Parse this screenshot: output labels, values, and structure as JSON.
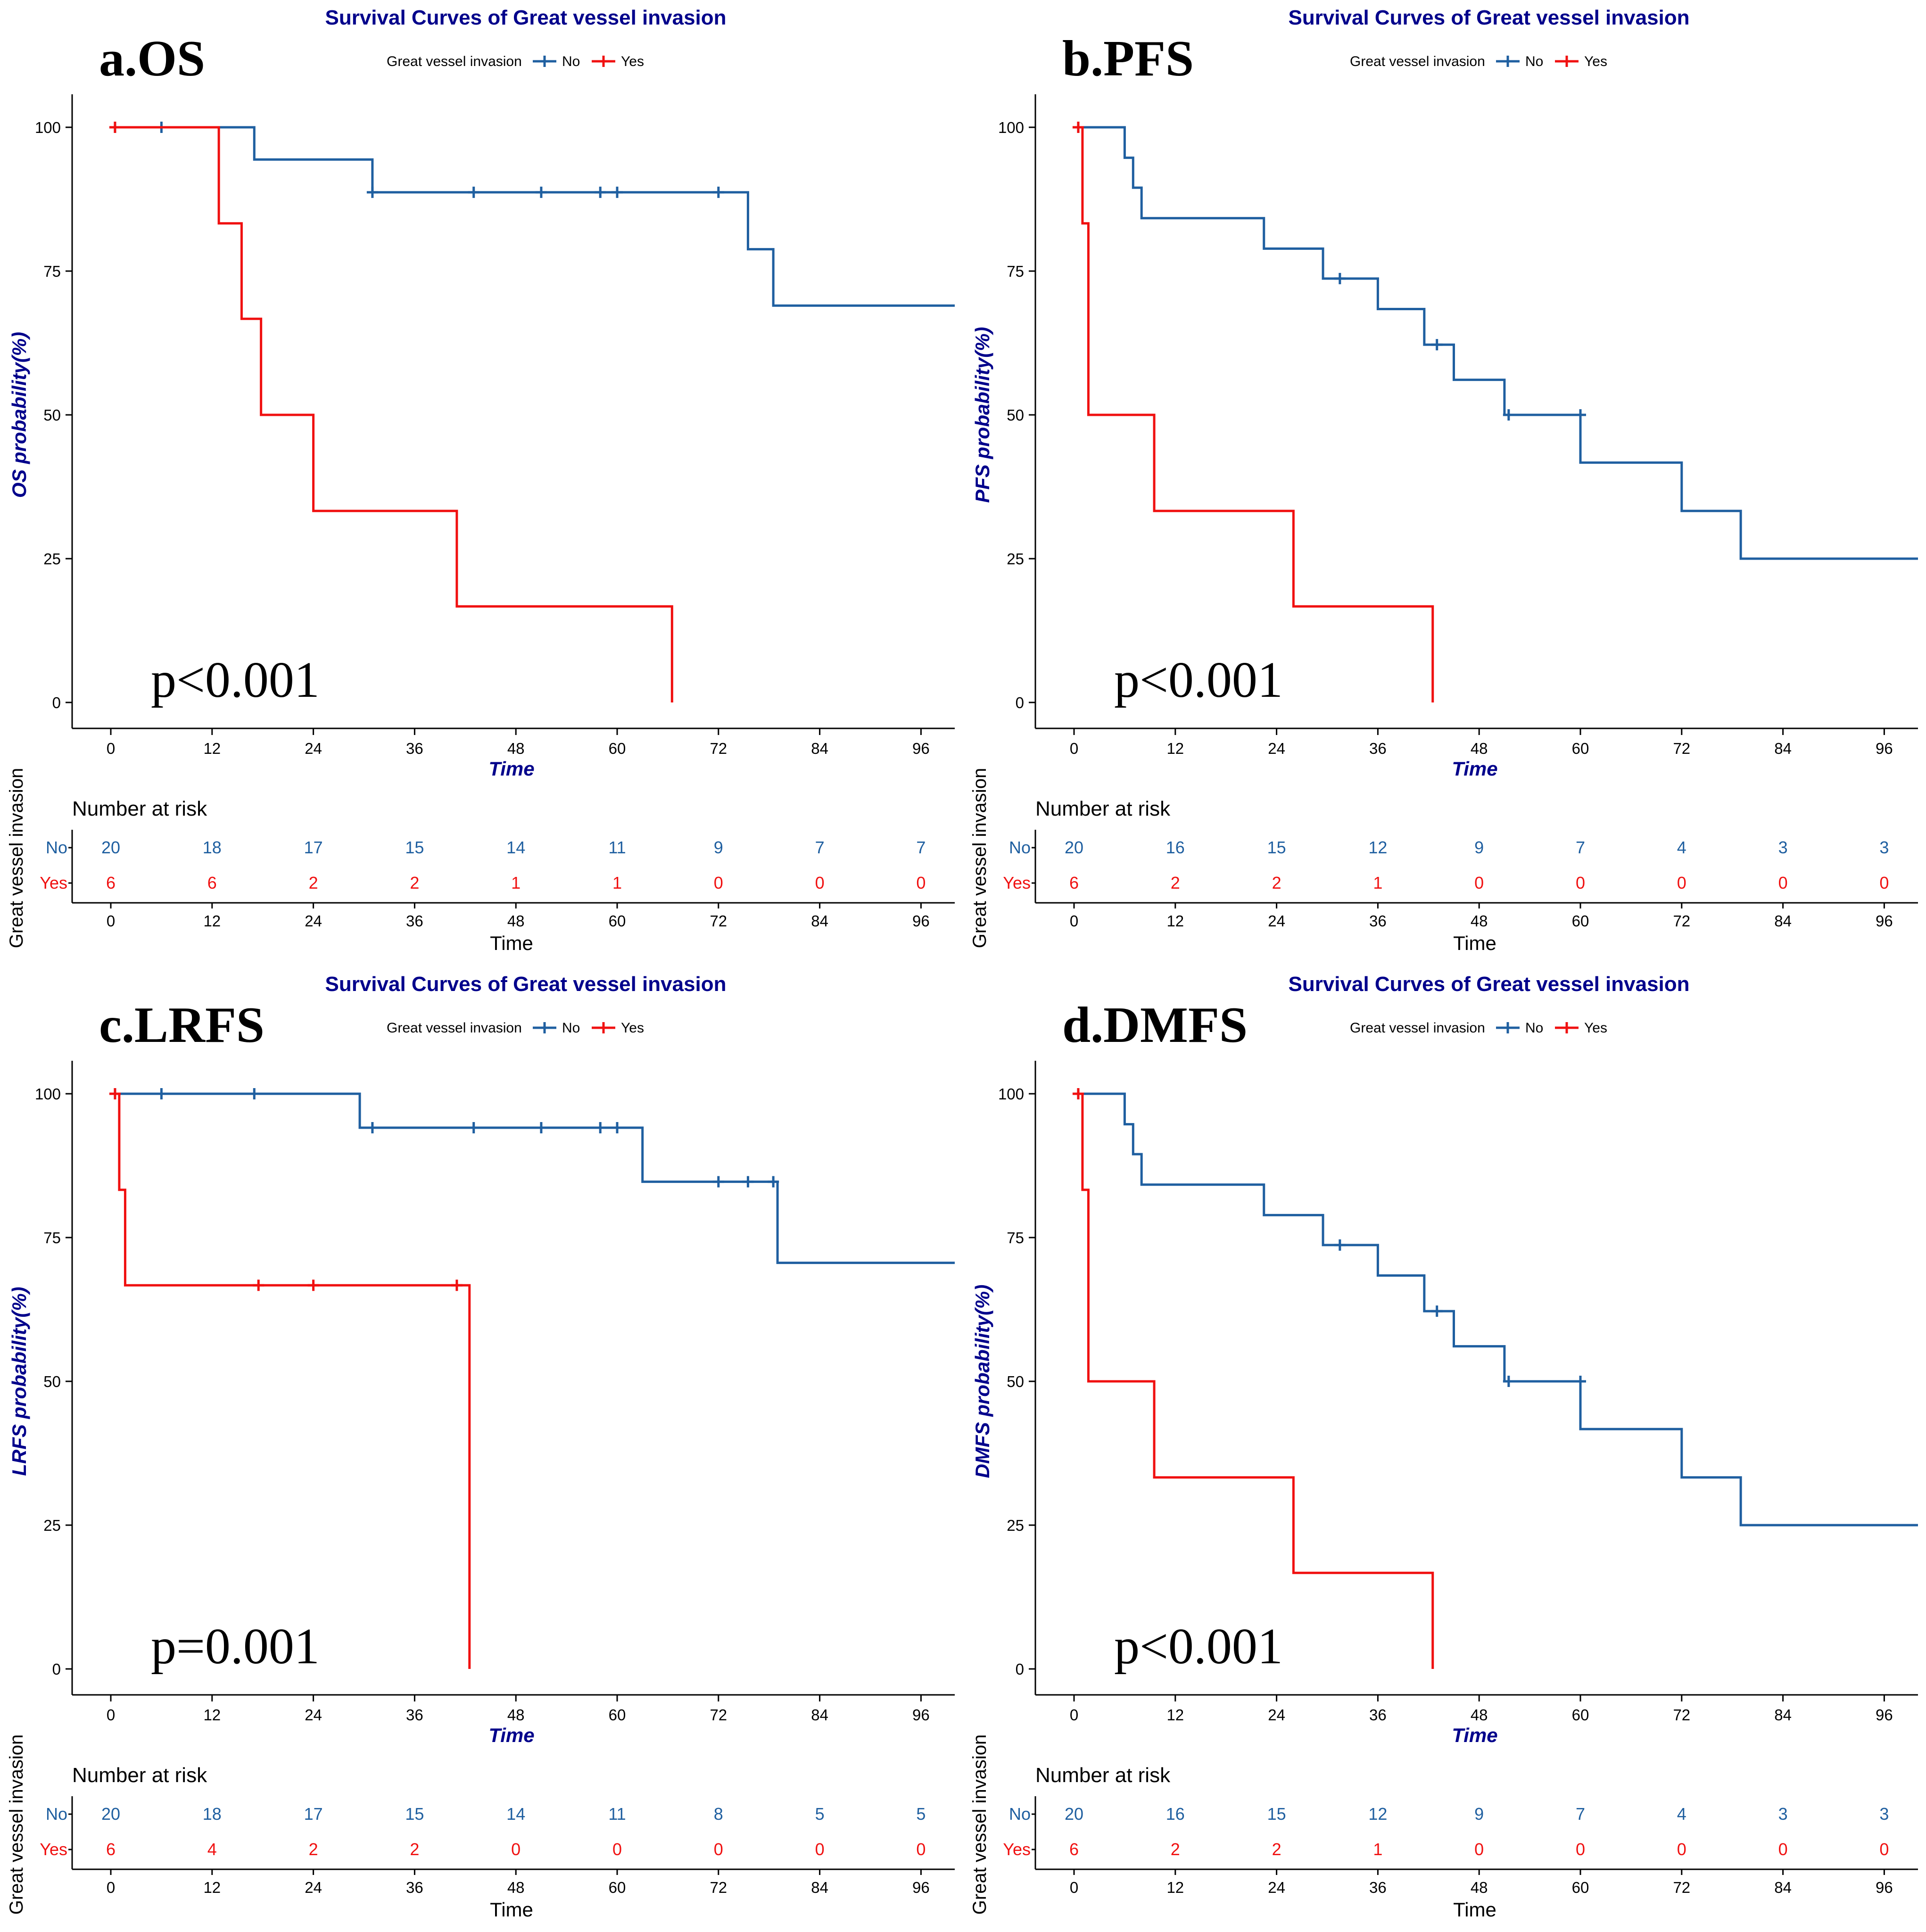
{
  "legend": {
    "title": "Great vessel invasion",
    "groups": [
      "No",
      "Yes"
    ]
  },
  "colors": {
    "No": "#1F5FA0",
    "Yes": "#F01010",
    "title": "#00008B"
  },
  "risk_table": {
    "title": "Number at risk",
    "xlabel": "Time",
    "ylabel": "Great vessel invasion",
    "rows": [
      "No",
      "Yes"
    ]
  },
  "chart_data": [
    {
      "type": "line",
      "panel_label": "a.OS",
      "title": "Survival Curves of Great vessel invasion",
      "xlabel": "Time",
      "ylabel": "OS probability(%)",
      "p_value": "p<0.001",
      "xlim": [
        0,
        100
      ],
      "ylim": [
        0,
        100
      ],
      "xticks": [
        0,
        12,
        24,
        36,
        48,
        60,
        72,
        84,
        96
      ],
      "yticks": [
        0,
        25,
        50,
        75,
        100
      ],
      "series": [
        {
          "name": "No",
          "color": "#1F5FA0",
          "steps": [
            [
              0,
              100
            ],
            [
              17,
              94.4
            ],
            [
              31,
              88.7
            ],
            [
              75.5,
              78.8
            ],
            [
              78.5,
              69
            ],
            [
              101,
              69
            ]
          ],
          "censors": [
            [
              0.5,
              100
            ],
            [
              6,
              100
            ],
            [
              31,
              88.7
            ],
            [
              43,
              88.7
            ],
            [
              51,
              88.7
            ],
            [
              58,
              88.7
            ],
            [
              60,
              88.7
            ],
            [
              72,
              88.7
            ]
          ]
        },
        {
          "name": "Yes",
          "color": "#F01010",
          "steps": [
            [
              0,
              100
            ],
            [
              12.8,
              83.3
            ],
            [
              15.5,
              66.7
            ],
            [
              17.8,
              50
            ],
            [
              24,
              33.3
            ],
            [
              41,
              16.7
            ],
            [
              66.5,
              0
            ]
          ],
          "censors": [
            [
              0.5,
              100
            ]
          ]
        }
      ],
      "risk": {
        "times": [
          0,
          12,
          24,
          36,
          48,
          60,
          72,
          84,
          96
        ],
        "No": [
          20,
          18,
          17,
          15,
          14,
          11,
          9,
          7,
          7
        ],
        "Yes": [
          6,
          6,
          2,
          2,
          1,
          1,
          0,
          0,
          0
        ]
      }
    },
    {
      "type": "line",
      "panel_label": "b.PFS",
      "title": "Survival Curves of Great vessel invasion",
      "xlabel": "Time",
      "ylabel": "PFS probability(%)",
      "p_value": "p<0.001",
      "xlim": [
        0,
        100
      ],
      "ylim": [
        0,
        100
      ],
      "xticks": [
        0,
        12,
        24,
        36,
        48,
        60,
        72,
        84,
        96
      ],
      "yticks": [
        0,
        25,
        50,
        75,
        100
      ],
      "series": [
        {
          "name": "No",
          "color": "#1F5FA0",
          "steps": [
            [
              0,
              100
            ],
            [
              6,
              94.7
            ],
            [
              7,
              89.5
            ],
            [
              8,
              84.2
            ],
            [
              22.5,
              78.9
            ],
            [
              29.5,
              73.7
            ],
            [
              36,
              68.4
            ],
            [
              41.5,
              62.2
            ],
            [
              45,
              56.1
            ],
            [
              51,
              50
            ],
            [
              60,
              41.7
            ],
            [
              72,
              33.3
            ],
            [
              79,
              25
            ],
            [
              101,
              25
            ]
          ],
          "censors": [
            [
              0.5,
              100
            ],
            [
              31.5,
              73.7
            ],
            [
              43,
              62.2
            ],
            [
              51.5,
              50
            ],
            [
              60,
              50
            ]
          ]
        },
        {
          "name": "Yes",
          "color": "#F01010",
          "steps": [
            [
              0,
              100
            ],
            [
              1,
              83.3
            ],
            [
              1.7,
              50
            ],
            [
              9.5,
              33.3
            ],
            [
              26,
              16.7
            ],
            [
              42.5,
              0
            ]
          ],
          "censors": [
            [
              0.5,
              100
            ]
          ]
        }
      ],
      "risk": {
        "times": [
          0,
          12,
          24,
          36,
          48,
          60,
          72,
          84,
          96
        ],
        "No": [
          20,
          16,
          15,
          12,
          9,
          7,
          4,
          3,
          3
        ],
        "Yes": [
          6,
          2,
          2,
          1,
          0,
          0,
          0,
          0,
          0
        ]
      }
    },
    {
      "type": "line",
      "panel_label": "c.LRFS",
      "title": "Survival Curves of Great vessel invasion",
      "xlabel": "Time",
      "ylabel": "LRFS probability(%)",
      "p_value": "p=0.001",
      "xlim": [
        0,
        100
      ],
      "ylim": [
        0,
        100
      ],
      "xticks": [
        0,
        12,
        24,
        36,
        48,
        60,
        72,
        84,
        96
      ],
      "yticks": [
        0,
        25,
        50,
        75,
        100
      ],
      "series": [
        {
          "name": "No",
          "color": "#1F5FA0",
          "steps": [
            [
              0,
              100
            ],
            [
              29.5,
              94.1
            ],
            [
              63,
              84.7
            ],
            [
              79,
              70.6
            ],
            [
              101,
              70.6
            ]
          ],
          "censors": [
            [
              0.5,
              100
            ],
            [
              6,
              100
            ],
            [
              17,
              100
            ],
            [
              31,
              94.1
            ],
            [
              43,
              94.1
            ],
            [
              51,
              94.1
            ],
            [
              58,
              94.1
            ],
            [
              60,
              94.1
            ],
            [
              72,
              84.7
            ],
            [
              75.5,
              84.7
            ],
            [
              78.5,
              84.7
            ]
          ]
        },
        {
          "name": "Yes",
          "color": "#F01010",
          "steps": [
            [
              0,
              100
            ],
            [
              1,
              83.3
            ],
            [
              1.7,
              66.7
            ],
            [
              42.5,
              0
            ]
          ],
          "censors": [
            [
              0.5,
              100
            ],
            [
              17.5,
              66.7
            ],
            [
              24,
              66.7
            ],
            [
              41,
              66.7
            ]
          ]
        }
      ],
      "risk": {
        "times": [
          0,
          12,
          24,
          36,
          48,
          60,
          72,
          84,
          96
        ],
        "No": [
          20,
          18,
          17,
          15,
          14,
          11,
          8,
          5,
          5
        ],
        "Yes": [
          6,
          4,
          2,
          2,
          0,
          0,
          0,
          0,
          0
        ]
      }
    },
    {
      "type": "line",
      "panel_label": "d.DMFS",
      "title": "Survival Curves of Great vessel invasion",
      "xlabel": "Time",
      "ylabel": "DMFS probability(%)",
      "p_value": "p<0.001",
      "xlim": [
        0,
        100
      ],
      "ylim": [
        0,
        100
      ],
      "xticks": [
        0,
        12,
        24,
        36,
        48,
        60,
        72,
        84,
        96
      ],
      "yticks": [
        0,
        25,
        50,
        75,
        100
      ],
      "series": [
        {
          "name": "No",
          "color": "#1F5FA0",
          "steps": [
            [
              0,
              100
            ],
            [
              6,
              94.7
            ],
            [
              7,
              89.5
            ],
            [
              8,
              84.2
            ],
            [
              22.5,
              78.9
            ],
            [
              29.5,
              73.7
            ],
            [
              36,
              68.4
            ],
            [
              41.5,
              62.2
            ],
            [
              45,
              56.1
            ],
            [
              51,
              50
            ],
            [
              60,
              41.7
            ],
            [
              72,
              33.3
            ],
            [
              79,
              25
            ],
            [
              101,
              25
            ]
          ],
          "censors": [
            [
              0.5,
              100
            ],
            [
              31.5,
              73.7
            ],
            [
              43,
              62.2
            ],
            [
              51.5,
              50
            ],
            [
              60,
              50
            ]
          ]
        },
        {
          "name": "Yes",
          "color": "#F01010",
          "steps": [
            [
              0,
              100
            ],
            [
              1,
              83.3
            ],
            [
              1.7,
              50
            ],
            [
              9.5,
              33.3
            ],
            [
              26,
              16.7
            ],
            [
              42.5,
              0
            ]
          ],
          "censors": [
            [
              0.5,
              100
            ]
          ]
        }
      ],
      "risk": {
        "times": [
          0,
          12,
          24,
          36,
          48,
          60,
          72,
          84,
          96
        ],
        "No": [
          20,
          16,
          15,
          12,
          9,
          7,
          4,
          3,
          3
        ],
        "Yes": [
          6,
          2,
          2,
          1,
          0,
          0,
          0,
          0,
          0
        ]
      }
    }
  ]
}
